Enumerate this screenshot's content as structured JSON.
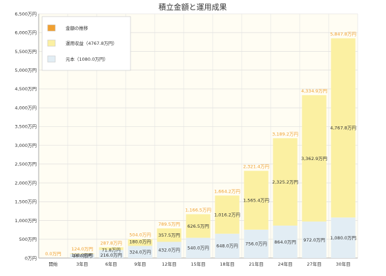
{
  "chart_data": {
    "type": "bar",
    "title": "積立金額と運用成果",
    "categories": [
      "開始",
      "3年目",
      "6年目",
      "9年目",
      "12年目",
      "15年目",
      "18年目",
      "21年目",
      "24年目",
      "27年目",
      "30年目"
    ],
    "series": [
      {
        "name": "元本（1080.0万円）",
        "values": [
          0,
          108,
          216,
          324,
          432,
          540,
          648,
          756,
          864,
          972,
          1080
        ],
        "labels": [
          "",
          "108.0万円",
          "216.0万円",
          "324.0万円",
          "432.0万円",
          "540.0万円",
          "648.0万円",
          "756.0万円",
          "864.0万円",
          "972.0万円",
          "1,080.0万円"
        ],
        "color": "#e2edf4"
      },
      {
        "name": "運用収益（4767.8万円）",
        "values": [
          0,
          16,
          71.8,
          180,
          357.5,
          626.5,
          1016.2,
          1565.4,
          2325.2,
          3362.9,
          4767.8
        ],
        "labels": [
          "",
          "16.0万円",
          "71.8万円",
          "180.0万円",
          "357.5万円",
          "626.5万円",
          "1,016.2万円",
          "1,565.4万円",
          "2,325.2万円",
          "3,362.9万円",
          "4,767.8万円"
        ],
        "color": "#fbf0a2"
      },
      {
        "name": "金額の推移",
        "values": [
          0,
          124,
          287.8,
          504,
          789.5,
          1166.5,
          1664.2,
          2321.4,
          3189.2,
          4334.9,
          5847.8
        ],
        "labels": [
          "0.0万円",
          "124.0万円",
          "287.8万円",
          "504.0万円",
          "789.5万円",
          "1,166.5万円",
          "1,664.2万円",
          "2,321.4万円",
          "3,189.2万円",
          "4,334.9万円",
          "5,847.8万円"
        ],
        "color": "#f0a030"
      }
    ],
    "ylim": [
      0,
      6500
    ],
    "yticks": [
      0,
      500,
      1000,
      1500,
      2000,
      2500,
      3000,
      3500,
      4000,
      4500,
      5000,
      5500,
      6000,
      6500
    ],
    "ytick_labels": [
      "0万円",
      "500万円",
      "1,000万円",
      "1,500万円",
      "2,000万円",
      "2,500万円",
      "3,000万円",
      "3,500万円",
      "4,000万円",
      "4,500万円",
      "5,000万円",
      "5,500万円",
      "6,000万円",
      "6,500万円"
    ],
    "grid": true,
    "legend_position": "top-left"
  }
}
